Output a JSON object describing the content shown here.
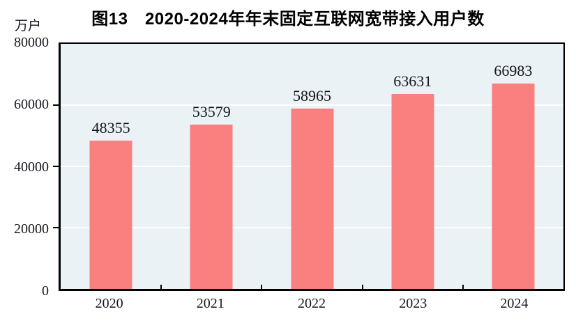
{
  "header": {
    "title": "图13　2020-2024年年末固定互联网宽带接入用户数",
    "unit_label": "万户"
  },
  "chart_data": {
    "type": "bar",
    "title": "图13　2020-2024年年末固定互联网宽带接入用户数",
    "categories": [
      "2020",
      "2021",
      "2022",
      "2023",
      "2024"
    ],
    "values": [
      48355,
      53579,
      58965,
      63631,
      66983
    ],
    "xlabel": "",
    "ylabel": "万户",
    "ylim": [
      0,
      80000
    ],
    "yticks": [
      0,
      20000,
      40000,
      60000,
      80000
    ],
    "grid": "horizontal white gridlines at 20000/40000/60000",
    "legend": "none",
    "data_labels": "above each bar",
    "colors": {
      "bar_fill": "#FA8080",
      "plot_background": "#EBF2F6",
      "gridline": "#FFFFFF",
      "axis_frame": "#000000",
      "label_text": "#15151F",
      "title_text": "#000000"
    }
  }
}
